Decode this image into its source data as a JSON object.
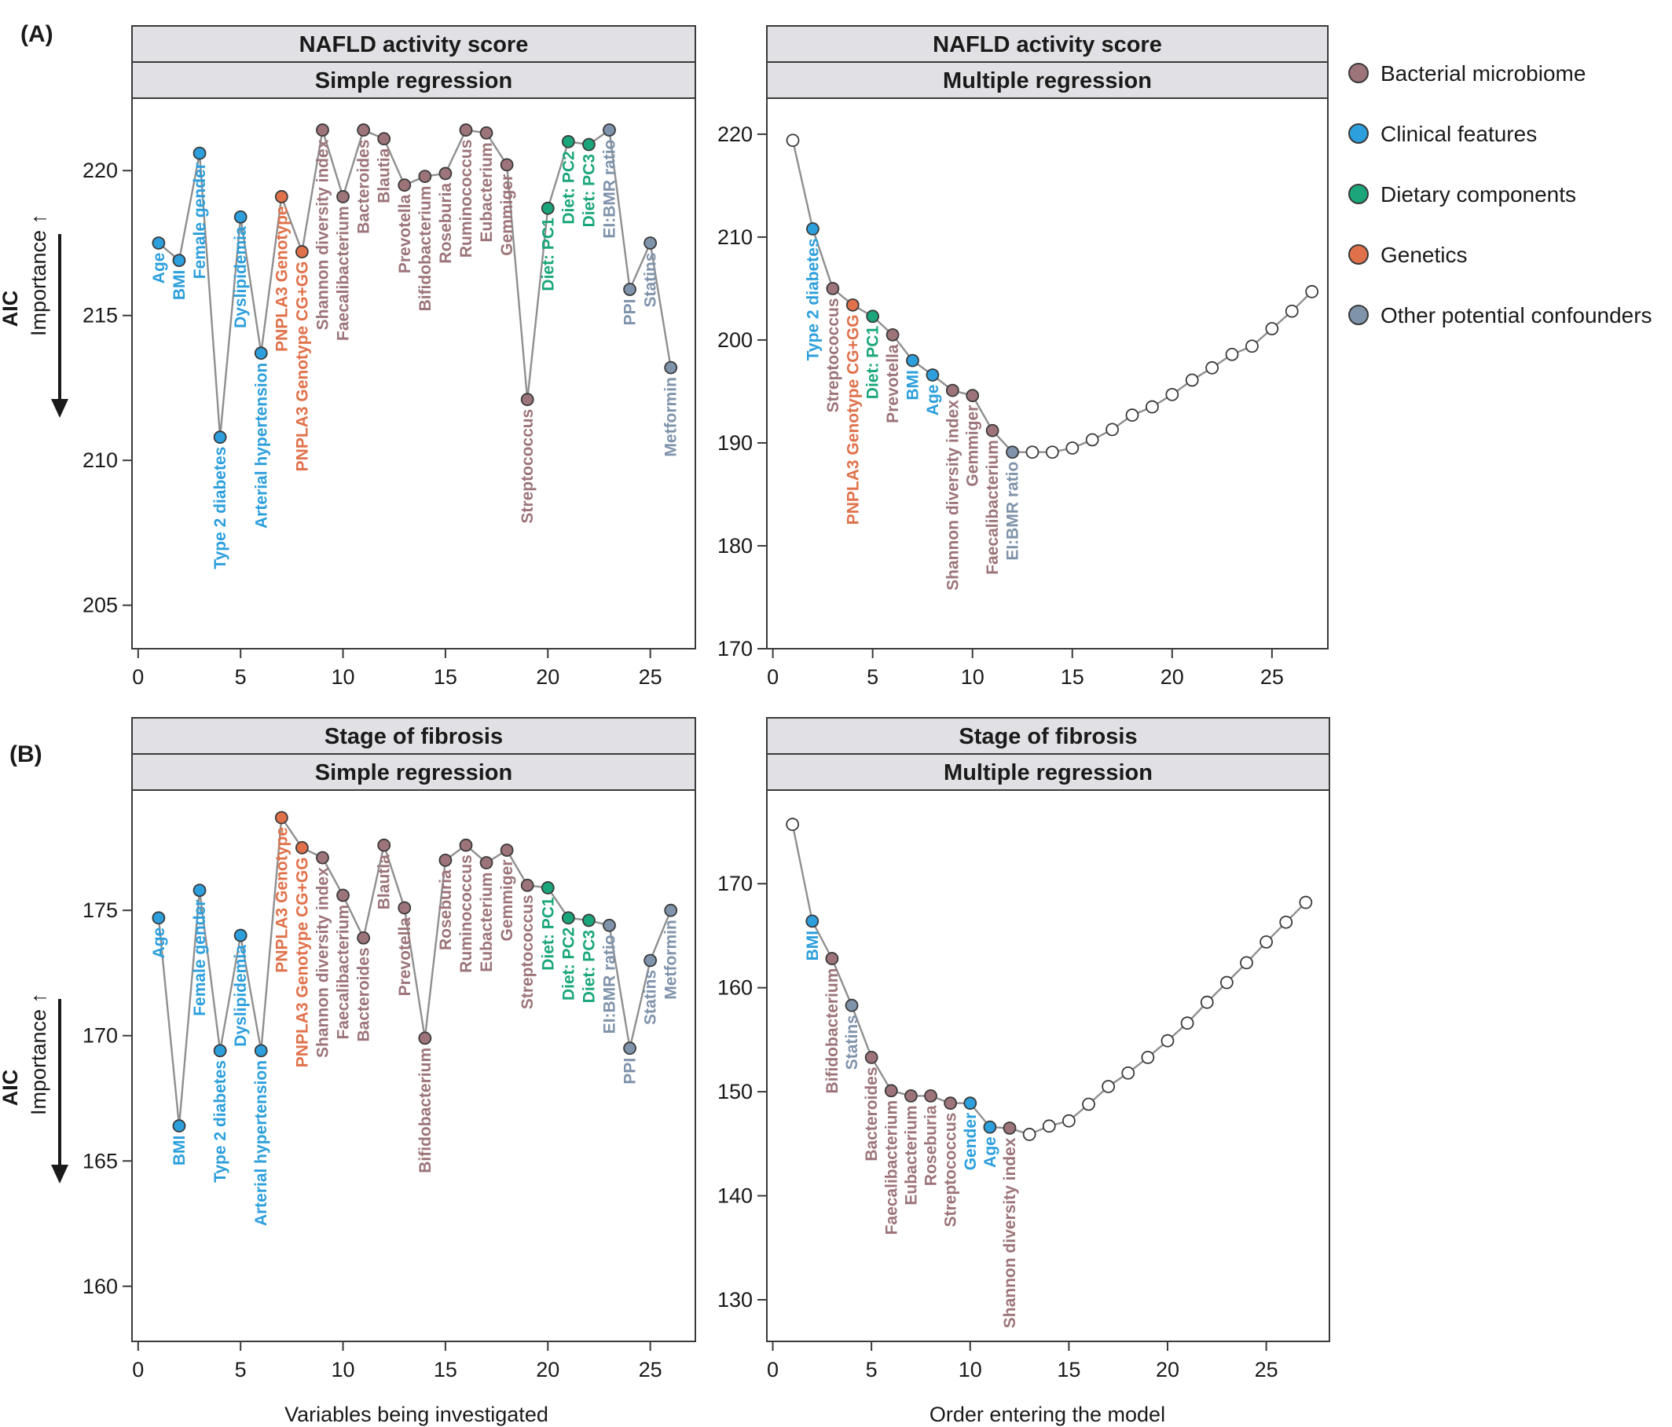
{
  "figure": {
    "legend": {
      "items": [
        {
          "label": "Bacterial microbiome",
          "color": "#9c7479"
        },
        {
          "label": "Clinical features",
          "color": "#2c9fdc"
        },
        {
          "label": "Dietary components",
          "color": "#1aa67a"
        },
        {
          "label": "Genetics",
          "color": "#e0714a"
        },
        {
          "label": "Other potential confounders",
          "color": "#7f93ab"
        }
      ]
    },
    "x_titles": {
      "left": "Variables being investigated",
      "right": "Order entering the model"
    },
    "y_title": {
      "main": "AIC",
      "sub": "Importance ↑"
    },
    "unselected_color": "#ffffff"
  },
  "chart_data": [
    {
      "type": "scatter",
      "panel": "(A)",
      "strip_top": "NAFLD activity score",
      "strip_bottom": "Simple regression",
      "ylabel": "AIC",
      "ylim": [
        203.5,
        222.5
      ],
      "yticks": [
        205,
        210,
        215,
        220
      ],
      "xlim": [
        -0.3,
        27.2
      ],
      "xticks": [
        0,
        5,
        10,
        15,
        20,
        25
      ],
      "points": [
        {
          "x": 1,
          "y": 217.5,
          "label": "Age",
          "category": "Clinical features"
        },
        {
          "x": 2,
          "y": 216.9,
          "label": "BMI",
          "category": "Clinical features"
        },
        {
          "x": 3,
          "y": 220.6,
          "label": "Female gender",
          "category": "Clinical features"
        },
        {
          "x": 4,
          "y": 210.8,
          "label": "Type 2 diabetes",
          "category": "Clinical features"
        },
        {
          "x": 5,
          "y": 218.4,
          "label": "Dyslipidemia",
          "category": "Clinical features"
        },
        {
          "x": 6,
          "y": 213.7,
          "label": "Arterial hypertension",
          "category": "Clinical features"
        },
        {
          "x": 7,
          "y": 219.1,
          "label": "PNPLA3 Genotype",
          "category": "Genetics"
        },
        {
          "x": 8,
          "y": 217.2,
          "label": "PNPLA3 Genotype CG+GG",
          "category": "Genetics"
        },
        {
          "x": 9,
          "y": 221.4,
          "label": "Shannon diversity index",
          "category": "Bacterial microbiome"
        },
        {
          "x": 10,
          "y": 219.1,
          "label": "Faecalibacterium",
          "category": "Bacterial microbiome"
        },
        {
          "x": 11,
          "y": 221.4,
          "label": "Bacteroides",
          "category": "Bacterial microbiome"
        },
        {
          "x": 12,
          "y": 221.1,
          "label": "Blautia",
          "category": "Bacterial microbiome"
        },
        {
          "x": 13,
          "y": 219.5,
          "label": "Prevotella",
          "category": "Bacterial microbiome"
        },
        {
          "x": 14,
          "y": 219.8,
          "label": "Bifidobacterium",
          "category": "Bacterial microbiome"
        },
        {
          "x": 15,
          "y": 219.9,
          "label": "Roseburia",
          "category": "Bacterial microbiome"
        },
        {
          "x": 16,
          "y": 221.4,
          "label": "Ruminococcus",
          "category": "Bacterial microbiome"
        },
        {
          "x": 17,
          "y": 221.3,
          "label": "Eubacterium",
          "category": "Bacterial microbiome"
        },
        {
          "x": 18,
          "y": 220.2,
          "label": "Gemmiger",
          "category": "Bacterial microbiome"
        },
        {
          "x": 19,
          "y": 212.1,
          "label": "Streptococcus",
          "category": "Bacterial microbiome"
        },
        {
          "x": 20,
          "y": 218.7,
          "label": "Diet: PC1",
          "category": "Dietary components"
        },
        {
          "x": 21,
          "y": 221.0,
          "label": "Diet: PC2",
          "category": "Dietary components"
        },
        {
          "x": 22,
          "y": 220.9,
          "label": "Diet: PC3",
          "category": "Dietary components"
        },
        {
          "x": 23,
          "y": 221.4,
          "label": "EI:BMR ratio",
          "category": "Other potential confounders"
        },
        {
          "x": 24,
          "y": 215.9,
          "label": "PPI",
          "category": "Other potential confounders"
        },
        {
          "x": 25,
          "y": 217.5,
          "label": "Statins",
          "category": "Other potential confounders"
        },
        {
          "x": 26,
          "y": 213.2,
          "label": "Metformin",
          "category": "Other potential confounders"
        }
      ]
    },
    {
      "type": "scatter",
      "panel": "",
      "strip_top": "NAFLD activity score",
      "strip_bottom": "Multiple regression",
      "ylim": [
        170,
        223.5
      ],
      "yticks": [
        170,
        180,
        190,
        200,
        210,
        220
      ],
      "xlim": [
        -0.3,
        27.8
      ],
      "xticks": [
        0,
        5,
        10,
        15,
        20,
        25
      ],
      "points": [
        {
          "x": 1,
          "y": 219.4,
          "label": "",
          "category": ""
        },
        {
          "x": 2,
          "y": 210.8,
          "label": "Type 2 diabetes",
          "category": "Clinical features"
        },
        {
          "x": 3,
          "y": 205.0,
          "label": "Streptococcus",
          "category": "Bacterial microbiome"
        },
        {
          "x": 4,
          "y": 203.4,
          "label": "PNPLA3 Genotype CG+GG",
          "category": "Genetics"
        },
        {
          "x": 5,
          "y": 202.3,
          "label": "Diet: PC1",
          "category": "Dietary components"
        },
        {
          "x": 6,
          "y": 200.5,
          "label": "Prevotella",
          "category": "Bacterial microbiome"
        },
        {
          "x": 7,
          "y": 198.0,
          "label": "BMI",
          "category": "Clinical features"
        },
        {
          "x": 8,
          "y": 196.6,
          "label": "Age",
          "category": "Clinical features"
        },
        {
          "x": 9,
          "y": 195.1,
          "label": "Shannon diversity index",
          "category": "Bacterial microbiome"
        },
        {
          "x": 10,
          "y": 194.6,
          "label": "Gemmiger",
          "category": "Bacterial microbiome"
        },
        {
          "x": 11,
          "y": 191.2,
          "label": "Faecalibacterium",
          "category": "Bacterial microbiome"
        },
        {
          "x": 12,
          "y": 189.1,
          "label": "EI:BMR ratio",
          "category": "Other potential confounders"
        },
        {
          "x": 13,
          "y": 189.1,
          "label": "",
          "category": ""
        },
        {
          "x": 14,
          "y": 189.1,
          "label": "",
          "category": ""
        },
        {
          "x": 15,
          "y": 189.5,
          "label": "",
          "category": ""
        },
        {
          "x": 16,
          "y": 190.3,
          "label": "",
          "category": ""
        },
        {
          "x": 17,
          "y": 191.3,
          "label": "",
          "category": ""
        },
        {
          "x": 18,
          "y": 192.7,
          "label": "",
          "category": ""
        },
        {
          "x": 19,
          "y": 193.5,
          "label": "",
          "category": ""
        },
        {
          "x": 20,
          "y": 194.7,
          "label": "",
          "category": ""
        },
        {
          "x": 21,
          "y": 196.1,
          "label": "",
          "category": ""
        },
        {
          "x": 22,
          "y": 197.3,
          "label": "",
          "category": ""
        },
        {
          "x": 23,
          "y": 198.6,
          "label": "",
          "category": ""
        },
        {
          "x": 24,
          "y": 199.4,
          "label": "",
          "category": ""
        },
        {
          "x": 25,
          "y": 201.1,
          "label": "",
          "category": ""
        },
        {
          "x": 26,
          "y": 202.8,
          "label": "",
          "category": ""
        },
        {
          "x": 27,
          "y": 204.7,
          "label": "",
          "category": ""
        }
      ]
    },
    {
      "type": "scatter",
      "panel": "(B)",
      "strip_top": "Stage of fibrosis",
      "strip_bottom": "Simple regression",
      "ylabel": "AIC",
      "ylim": [
        157.8,
        179.8
      ],
      "yticks": [
        160,
        165,
        170,
        175
      ],
      "xlim": [
        -0.3,
        27.2
      ],
      "xticks": [
        0,
        5,
        10,
        15,
        20,
        25
      ],
      "points": [
        {
          "x": 1,
          "y": 174.7,
          "label": "Age",
          "category": "Clinical features"
        },
        {
          "x": 2,
          "y": 166.4,
          "label": "BMI",
          "category": "Clinical features"
        },
        {
          "x": 3,
          "y": 175.8,
          "label": "Female gender",
          "category": "Clinical features"
        },
        {
          "x": 4,
          "y": 169.4,
          "label": "Type 2 diabetes",
          "category": "Clinical features"
        },
        {
          "x": 5,
          "y": 174.0,
          "label": "Dyslipidemia",
          "category": "Clinical features"
        },
        {
          "x": 6,
          "y": 169.4,
          "label": "Arterial hypertension",
          "category": "Clinical features"
        },
        {
          "x": 7,
          "y": 178.7,
          "label": "PNPLA3 Genotype",
          "category": "Genetics"
        },
        {
          "x": 8,
          "y": 177.5,
          "label": "PNPLA3 Genotype CG+GG",
          "category": "Genetics"
        },
        {
          "x": 9,
          "y": 177.1,
          "label": "Shannon diversity index",
          "category": "Bacterial microbiome"
        },
        {
          "x": 10,
          "y": 175.6,
          "label": "Faecalibacterium",
          "category": "Bacterial microbiome"
        },
        {
          "x": 11,
          "y": 173.9,
          "label": "Bacteroides",
          "category": "Bacterial microbiome"
        },
        {
          "x": 12,
          "y": 177.6,
          "label": "Blautia",
          "category": "Bacterial microbiome"
        },
        {
          "x": 13,
          "y": 175.1,
          "label": "Prevotella",
          "category": "Bacterial microbiome"
        },
        {
          "x": 14,
          "y": 169.9,
          "label": "Bifidobacterium",
          "category": "Bacterial microbiome"
        },
        {
          "x": 15,
          "y": 177.0,
          "label": "Roseburia",
          "category": "Bacterial microbiome"
        },
        {
          "x": 16,
          "y": 177.6,
          "label": "Ruminococcus",
          "category": "Bacterial microbiome"
        },
        {
          "x": 17,
          "y": 176.9,
          "label": "Eubacterium",
          "category": "Bacterial microbiome"
        },
        {
          "x": 18,
          "y": 177.4,
          "label": "Gemmiger",
          "category": "Bacterial microbiome"
        },
        {
          "x": 19,
          "y": 176.0,
          "label": "Streptococcus",
          "category": "Bacterial microbiome"
        },
        {
          "x": 20,
          "y": 175.9,
          "label": "Diet: PC1",
          "category": "Dietary components"
        },
        {
          "x": 21,
          "y": 174.7,
          "label": "Diet: PC2",
          "category": "Dietary components"
        },
        {
          "x": 22,
          "y": 174.6,
          "label": "Diet: PC3",
          "category": "Dietary components"
        },
        {
          "x": 23,
          "y": 174.4,
          "label": "EI:BMR ratio",
          "category": "Other potential confounders"
        },
        {
          "x": 24,
          "y": 169.5,
          "label": "PPI",
          "category": "Other potential confounders"
        },
        {
          "x": 25,
          "y": 173.0,
          "label": "Statins",
          "category": "Other potential confounders"
        },
        {
          "x": 26,
          "y": 175.0,
          "label": "Metformin",
          "category": "Other potential confounders"
        }
      ]
    },
    {
      "type": "scatter",
      "panel": "",
      "strip_top": "Stage of fibrosis",
      "strip_bottom": "Multiple regression",
      "ylim": [
        126,
        179
      ],
      "yticks": [
        130,
        140,
        150,
        160,
        170
      ],
      "xlim": [
        -0.3,
        28.2
      ],
      "xticks": [
        0,
        5,
        10,
        15,
        20,
        25
      ],
      "points": [
        {
          "x": 1,
          "y": 175.7,
          "label": "",
          "category": ""
        },
        {
          "x": 2,
          "y": 166.4,
          "label": "BMI",
          "category": "Clinical features"
        },
        {
          "x": 3,
          "y": 162.8,
          "label": "Bifidobacterium",
          "category": "Bacterial microbiome"
        },
        {
          "x": 4,
          "y": 158.3,
          "label": "Statins",
          "category": "Other potential confounders"
        },
        {
          "x": 5,
          "y": 153.3,
          "label": "Bacteroides",
          "category": "Bacterial microbiome"
        },
        {
          "x": 6,
          "y": 150.1,
          "label": "Faecalibacterium",
          "category": "Bacterial microbiome"
        },
        {
          "x": 7,
          "y": 149.6,
          "label": "Eubacterium",
          "category": "Bacterial microbiome"
        },
        {
          "x": 8,
          "y": 149.6,
          "label": "Roseburia",
          "category": "Bacterial microbiome"
        },
        {
          "x": 9,
          "y": 148.9,
          "label": "Streptococcus",
          "category": "Bacterial microbiome"
        },
        {
          "x": 10,
          "y": 148.9,
          "label": "Gender",
          "category": "Clinical features"
        },
        {
          "x": 11,
          "y": 146.6,
          "label": "Age",
          "category": "Clinical features"
        },
        {
          "x": 12,
          "y": 146.5,
          "label": "Shannon diversity index",
          "category": "Bacterial microbiome"
        },
        {
          "x": 13,
          "y": 145.9,
          "label": "",
          "category": ""
        },
        {
          "x": 14,
          "y": 146.7,
          "label": "",
          "category": ""
        },
        {
          "x": 15,
          "y": 147.2,
          "label": "",
          "category": ""
        },
        {
          "x": 16,
          "y": 148.8,
          "label": "",
          "category": ""
        },
        {
          "x": 17,
          "y": 150.5,
          "label": "",
          "category": ""
        },
        {
          "x": 18,
          "y": 151.8,
          "label": "",
          "category": ""
        },
        {
          "x": 19,
          "y": 153.3,
          "label": "",
          "category": ""
        },
        {
          "x": 20,
          "y": 154.9,
          "label": "",
          "category": ""
        },
        {
          "x": 21,
          "y": 156.6,
          "label": "",
          "category": ""
        },
        {
          "x": 22,
          "y": 158.6,
          "label": "",
          "category": ""
        },
        {
          "x": 23,
          "y": 160.5,
          "label": "",
          "category": ""
        },
        {
          "x": 24,
          "y": 162.4,
          "label": "",
          "category": ""
        },
        {
          "x": 25,
          "y": 164.4,
          "label": "",
          "category": ""
        },
        {
          "x": 26,
          "y": 166.3,
          "label": "",
          "category": ""
        },
        {
          "x": 27,
          "y": 168.2,
          "label": "",
          "category": ""
        }
      ]
    }
  ]
}
